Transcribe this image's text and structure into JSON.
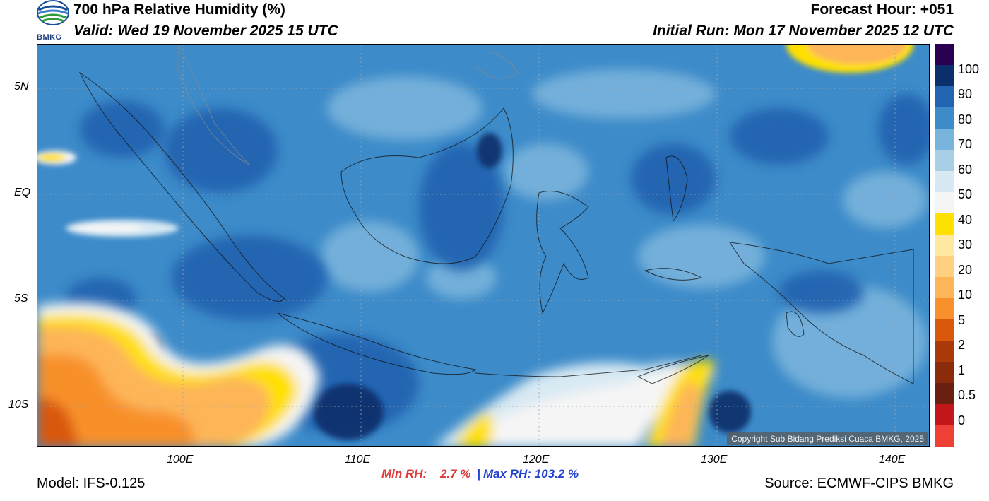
{
  "header": {
    "title": "700 hPa Relative Humidity (%)",
    "valid": "Valid: Wed 19 November 2025 15 UTC",
    "forecast_hour": "Forecast Hour: +051",
    "initial_run": "Initial Run: Mon 17 November 2025 12 UTC"
  },
  "logo": {
    "text": "BMKG",
    "icon": "bmkg-logo-icon"
  },
  "map": {
    "lat_ticks": [
      "5N",
      "EQ",
      "5S",
      "10S"
    ],
    "lon_ticks": [
      "100E",
      "110E",
      "120E",
      "130E",
      "140E"
    ],
    "copyright": "Copyright Sub Bidang Prediksi Cuaca BMKG, 2025"
  },
  "colorbar": {
    "labels": [
      "100",
      "90",
      "80",
      "70",
      "60",
      "50",
      "40",
      "30",
      "20",
      "10",
      "5",
      "2",
      "1",
      "0.5",
      "0"
    ],
    "colors": [
      "#2a0050",
      "#0b2f6b",
      "#2164b0",
      "#3d8bc9",
      "#79b4dc",
      "#a9cfe6",
      "#d8e9f3",
      "#f5f5f5",
      "#ffe000",
      "#ffe9a0",
      "#ffd080",
      "#fdb558",
      "#f8902b",
      "#d9580c",
      "#aa3a0a",
      "#8a2c0c",
      "#6a2010",
      "#c2181c",
      "#ee4035"
    ]
  },
  "stats": {
    "min_label": "Min RH:",
    "min_value": "2.7 %",
    "separator": "|",
    "max_label": "Max RH: 103.2 %"
  },
  "footer": {
    "model": "Model: IFS-0.125",
    "source": "Source: ECMWF-CIPS BMKG"
  }
}
